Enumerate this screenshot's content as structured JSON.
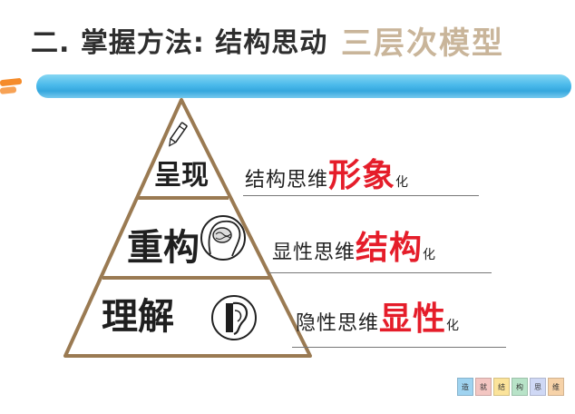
{
  "header": {
    "title_main": "二. 掌握方法: 结构思动",
    "title_sub": "三层次模型"
  },
  "pyramid": {
    "tiers": [
      {
        "label": "呈现"
      },
      {
        "label": "重构"
      },
      {
        "label": "理解"
      }
    ]
  },
  "statements": [
    {
      "prefix": "结构思维",
      "highlight": "形象",
      "suffix": "化"
    },
    {
      "prefix": "显性思维",
      "highlight": "结构",
      "suffix": "化"
    },
    {
      "prefix": "隐性思维",
      "highlight": "显性",
      "suffix": "化"
    }
  ],
  "logo": {
    "chars": [
      "造",
      "就",
      "结",
      "构",
      "思",
      "维"
    ],
    "colors": [
      "#9fd3f0",
      "#f3c6c2",
      "#fbe39a",
      "#b8e3c8",
      "#cfd8f5",
      "#f6d2a8"
    ]
  },
  "icons": [
    "pen-icon",
    "brain-head-icon",
    "ear-icon"
  ],
  "colors": {
    "accent_red": "#e51d2a",
    "brush_blue": "#2aa2dc",
    "title_tan": "#c9b59a",
    "pyramid_stroke": "#9a7a52"
  }
}
